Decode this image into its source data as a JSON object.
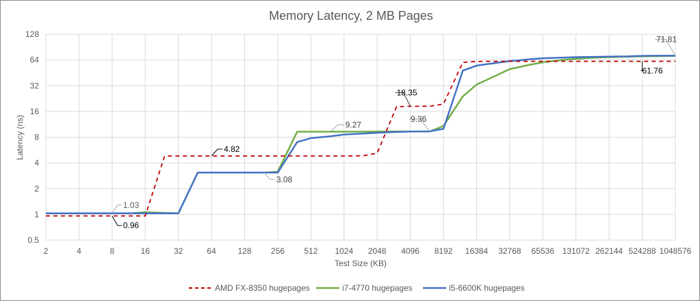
{
  "chart_data": {
    "type": "line",
    "title": "Memory Latency, 2 MB Pages",
    "xlabel": "Test Size (KB)",
    "ylabel": "Latency (ns)",
    "x_scale": "log2",
    "y_scale": "log2",
    "x_ticks": [
      "2",
      "4",
      "8",
      "16",
      "32",
      "64",
      "128",
      "256",
      "512",
      "1024",
      "2048",
      "4096",
      "8192",
      "16384",
      "32768",
      "65536",
      "131072",
      "262144",
      "524288",
      "1048576"
    ],
    "y_ticks": [
      "0.5",
      "1",
      "2",
      "4",
      "8",
      "16",
      "32",
      "64",
      "128"
    ],
    "ylim": [
      0.5,
      128
    ],
    "grid": true,
    "legend_position": "bottom",
    "x": [
      2,
      3,
      4,
      6,
      8,
      12,
      16,
      24,
      32,
      48,
      64,
      96,
      128,
      192,
      256,
      384,
      512,
      768,
      1024,
      1536,
      2048,
      3072,
      4096,
      6144,
      8192,
      12288,
      16384,
      24576,
      32768,
      49152,
      65536,
      98304,
      131072,
      196608,
      262144,
      393216,
      524288,
      786432,
      1048576
    ],
    "series": [
      {
        "name": "AMD FX-8350 hugepages",
        "color": "#c00000",
        "style": "dashed",
        "values": [
          0.96,
          0.96,
          0.96,
          0.96,
          0.96,
          0.96,
          0.96,
          4.82,
          4.82,
          4.82,
          4.82,
          4.82,
          4.82,
          4.82,
          4.82,
          4.82,
          4.82,
          4.82,
          4.82,
          4.85,
          5.2,
          18.2,
          18.35,
          18.4,
          19.5,
          60,
          61.5,
          61.7,
          61.76,
          61.76,
          61.76,
          61.76,
          61.76,
          61.76,
          61.76,
          61.76,
          61.76,
          61.76,
          61.76
        ]
      },
      {
        "name": "i7-4770 hugepages",
        "color": "#70ad47",
        "style": "solid",
        "values": [
          1.03,
          1.03,
          1.03,
          1.03,
          1.03,
          1.03,
          1.06,
          1.04,
          1.03,
          3.08,
          3.08,
          3.08,
          3.08,
          3.08,
          3.15,
          9.27,
          9.27,
          9.27,
          9.27,
          9.27,
          9.3,
          9.3,
          9.3,
          9.3,
          10.8,
          24,
          33,
          42,
          50,
          56,
          60,
          64,
          66,
          68,
          69,
          70,
          70.5,
          71,
          71.5
        ]
      },
      {
        "name": "i5-6600K hugepages",
        "color": "#4472c4",
        "style": "solid",
        "values": [
          1.03,
          1.03,
          1.03,
          1.03,
          1.03,
          1.03,
          1.03,
          1.03,
          1.03,
          3.08,
          3.08,
          3.08,
          3.08,
          3.08,
          3.08,
          7.0,
          7.8,
          8.2,
          8.6,
          8.8,
          9.0,
          9.2,
          9.3,
          9.36,
          10.0,
          48,
          55,
          59,
          62,
          65,
          67,
          68,
          69,
          69.5,
          70,
          70.5,
          71.5,
          71.8,
          71.81
        ]
      }
    ],
    "data_labels": [
      {
        "text": "1.03",
        "series": "i7-4770 hugepages",
        "x": 8
      },
      {
        "text": "0.96",
        "series": "AMD FX-8350 hugepages",
        "x": 8
      },
      {
        "text": "4.82",
        "series": "AMD FX-8350 hugepages",
        "x": 64
      },
      {
        "text": "3.08",
        "series": "i5-6600K hugepages",
        "x": 192
      },
      {
        "text": "9.27",
        "series": "i7-4770 hugepages",
        "x": 768
      },
      {
        "text": "18.35",
        "series": "AMD FX-8350 hugepages",
        "x": 4096
      },
      {
        "text": "9.36",
        "series": "i5-6600K hugepages",
        "x": 6144
      },
      {
        "text": "71.81",
        "series": "i5-6600K hugepages",
        "x": 1048576
      },
      {
        "text": "61.76",
        "series": "AMD FX-8350 hugepages",
        "x": 524288
      }
    ]
  },
  "legend": [
    {
      "label": "AMD FX-8350 hugepages"
    },
    {
      "label": "i7-4770 hugepages"
    },
    {
      "label": "i5-6600K hugepages"
    }
  ]
}
